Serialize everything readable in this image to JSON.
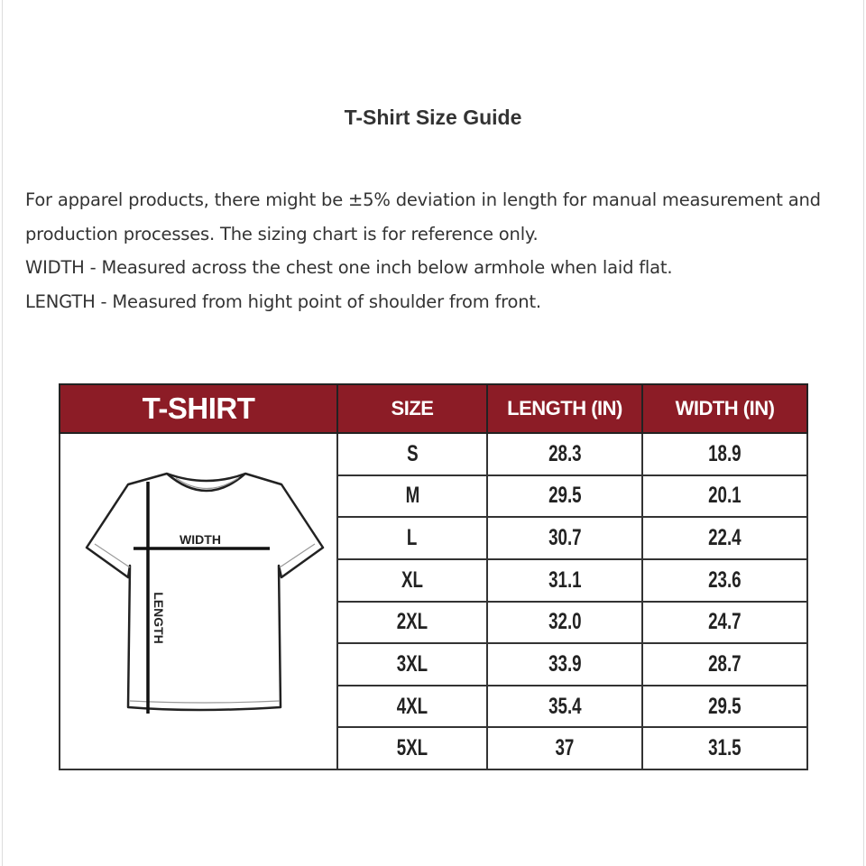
{
  "title": "T-Shirt Size Guide",
  "description": [
    "For apparel products, there might be ±5% deviation in length for manual measurement and production processes. The sizing chart is for reference only.",
    "WIDTH - Measured across the chest one inch below armhole when laid flat.",
    "LENGTH - Measured from hight point of shoulder from front."
  ],
  "table": {
    "header_color": "#8c1c26",
    "headers": [
      "T-SHIRT",
      "SIZE",
      "LENGTH (IN)",
      "WIDTH (IN)"
    ],
    "diagram_labels": {
      "width": "WIDTH",
      "length": "LENGTH"
    },
    "rows": [
      {
        "size": "S",
        "length": "28.3",
        "width": "18.9"
      },
      {
        "size": "M",
        "length": "29.5",
        "width": "20.1"
      },
      {
        "size": "L",
        "length": "30.7",
        "width": "22.4"
      },
      {
        "size": "XL",
        "length": "31.1",
        "width": "23.6"
      },
      {
        "size": "2XL",
        "length": "32.0",
        "width": "24.7"
      },
      {
        "size": "3XL",
        "length": "33.9",
        "width": "28.7"
      },
      {
        "size": "4XL",
        "length": "35.4",
        "width": "29.5"
      },
      {
        "size": "5XL",
        "length": "37",
        "width": "31.5"
      }
    ]
  }
}
